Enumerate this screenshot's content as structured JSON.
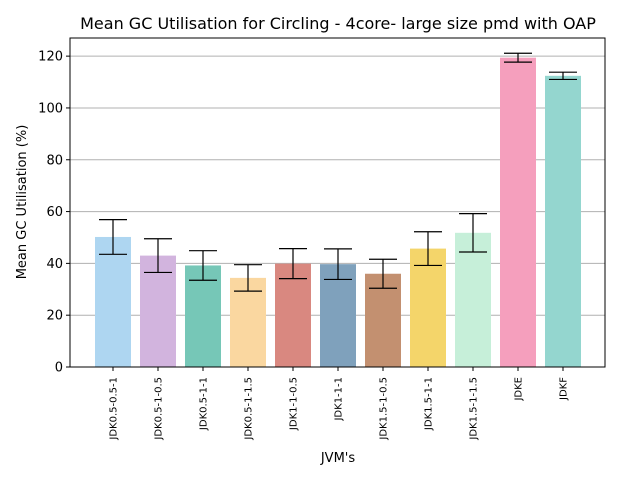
{
  "chart_data": {
    "type": "bar",
    "title": "Mean GC Utilisation for Circling - 4core- large size pmd with OAP",
    "xlabel": "JVM's",
    "ylabel": "Mean GC Utilisation (%)",
    "ylim": [
      0,
      127
    ],
    "yticks": [
      0,
      20,
      40,
      60,
      80,
      100,
      120
    ],
    "grid": "horizontal",
    "categories": [
      "JDK0.5-0.5-1",
      "JDK0.5-1-0.5",
      "JDK0.5-1-1",
      "JDK0.5-1-1.5",
      "JDK1-1-0.5",
      "JDK1-1-1",
      "JDK1.5-1-0.5",
      "JDK1.5-1-1",
      "JDK1.5-1-1.5",
      "JDKE",
      "JDKF"
    ],
    "values": [
      50.2,
      43.0,
      39.2,
      34.4,
      39.9,
      39.7,
      36.0,
      45.7,
      51.8,
      119.4,
      112.4
    ],
    "errors": [
      6.7,
      6.5,
      5.7,
      5.1,
      5.8,
      5.9,
      5.6,
      6.5,
      7.4,
      1.7,
      1.4
    ],
    "colors": [
      "#aed6f1",
      "#d2b4de",
      "#76c7b7",
      "#fad7a0",
      "#d98880",
      "#7fa1bc",
      "#c39070",
      "#f4d56a",
      "#c6efd9",
      "#f59fbd",
      "#94d6cf"
    ]
  }
}
